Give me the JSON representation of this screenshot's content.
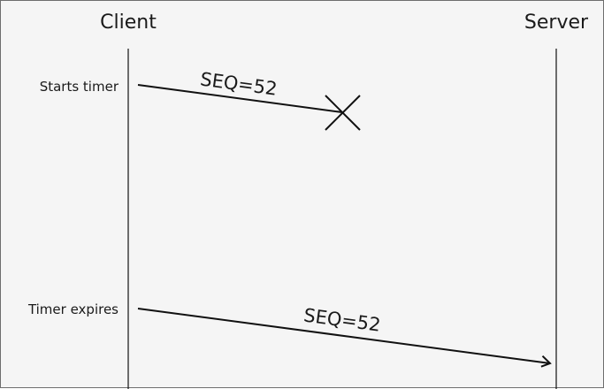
{
  "participants": {
    "client": "Client",
    "server": "Server"
  },
  "events": {
    "first_send": "Starts timer",
    "retransmit": "Timer expires"
  },
  "messages": [
    {
      "label": "SEQ=52",
      "status": "lost"
    },
    {
      "label": "SEQ=52",
      "status": "delivered"
    }
  ],
  "colors": {
    "background": "#f5f5f5",
    "ink": "#111111"
  }
}
